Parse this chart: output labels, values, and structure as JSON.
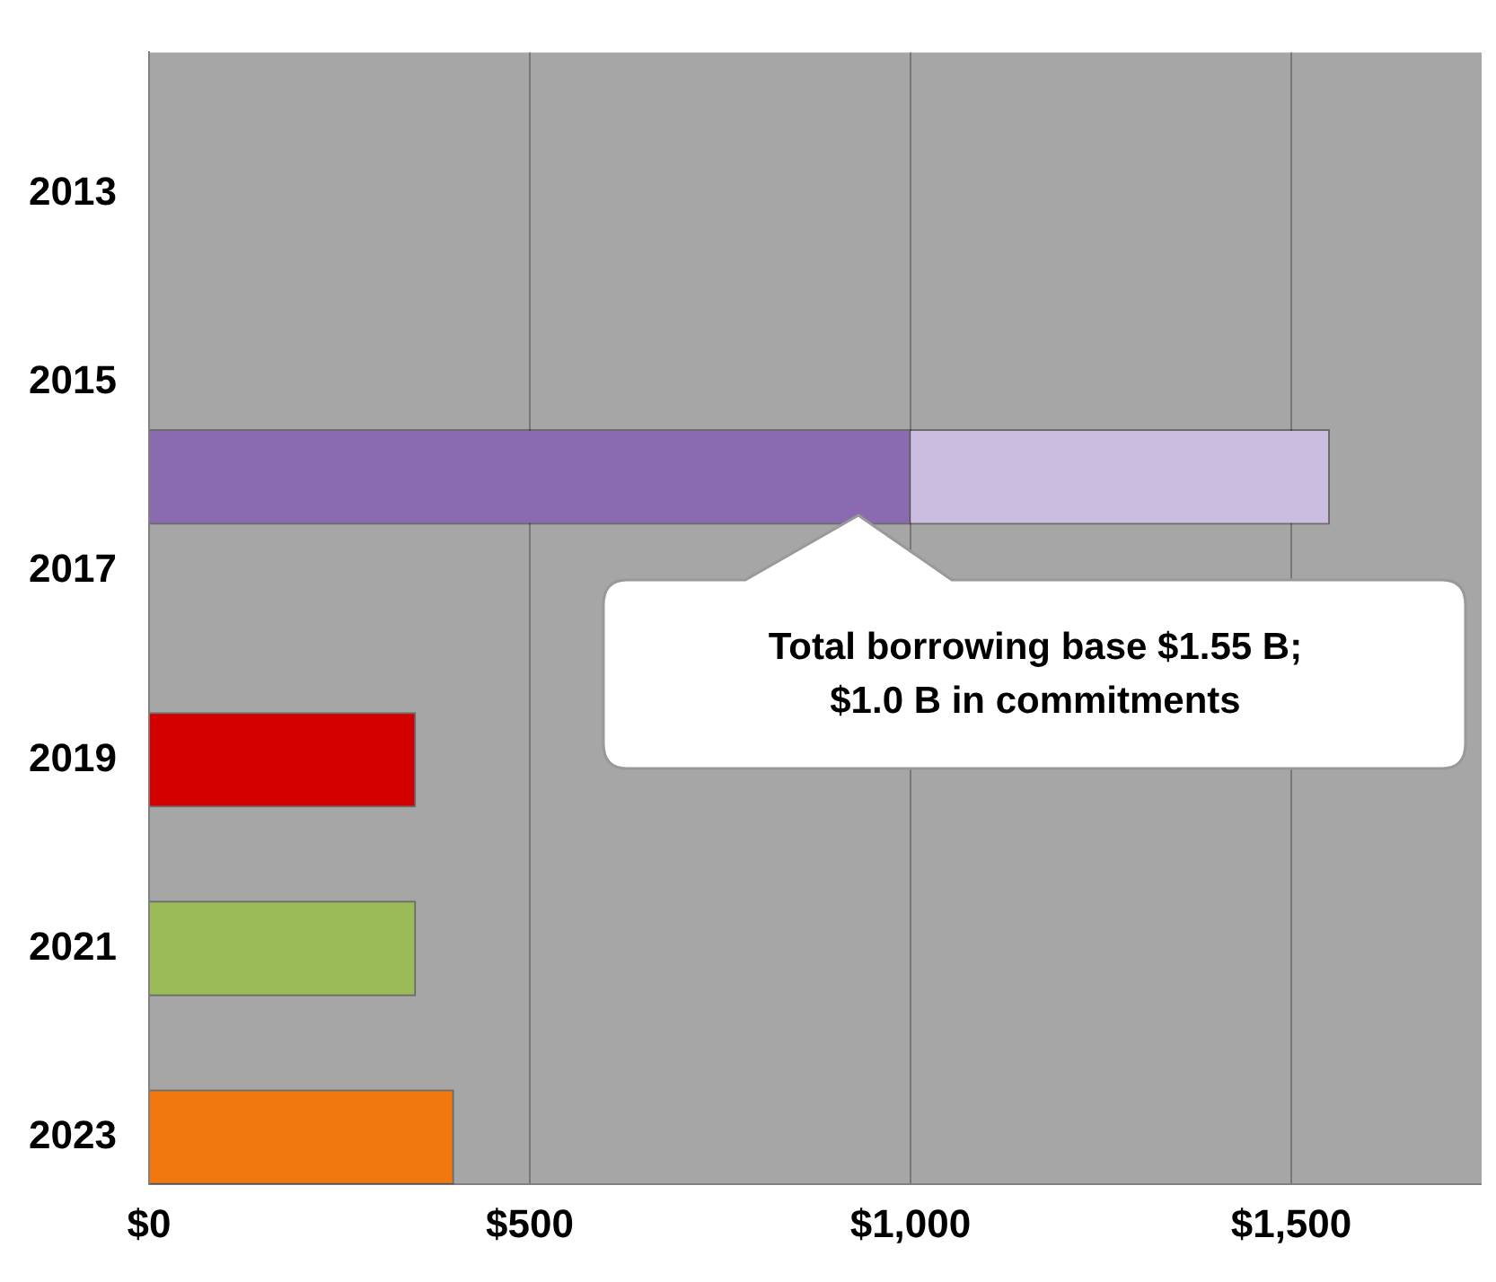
{
  "chart_data": {
    "type": "bar",
    "orientation": "horizontal",
    "stacked": true,
    "categories": [
      null,
      "2013",
      null,
      "2015",
      null,
      "2017",
      null,
      "2019",
      null,
      "2021",
      null,
      "2023"
    ],
    "series": [
      {
        "colors": [
          null,
          null,
          null,
          null,
          "#8a6ab0",
          null,
          null,
          "#d40000",
          null,
          "#9bbb59",
          null,
          "#f0780f"
        ],
        "values": [
          null,
          null,
          null,
          null,
          1000,
          null,
          null,
          350,
          null,
          350,
          null,
          400
        ]
      },
      {
        "colors": [
          null,
          null,
          null,
          null,
          "#cbbde0",
          null,
          null,
          null,
          null,
          null,
          null,
          null
        ],
        "values": [
          null,
          null,
          null,
          null,
          550,
          null,
          null,
          null,
          null,
          null,
          null,
          null
        ]
      }
    ],
    "xlim": [
      0,
      1750
    ],
    "xticks": [
      {
        "value": 0,
        "label": "$0"
      },
      {
        "value": 500,
        "label": "$500"
      },
      {
        "value": 1000,
        "label": "$1,000"
      },
      {
        "value": 1500,
        "label": "$1,500"
      }
    ],
    "grid": "x",
    "legend": false,
    "annotations": [
      "Total borrowing base $1.55 B;\n$1.0 B in commitments"
    ]
  }
}
